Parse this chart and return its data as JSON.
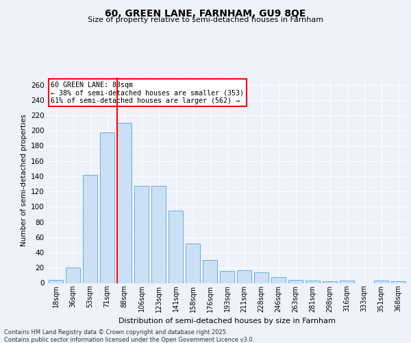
{
  "title": "60, GREEN LANE, FARNHAM, GU9 8QE",
  "subtitle": "Size of property relative to semi-detached houses in Farnham",
  "xlabel": "Distribution of semi-detached houses by size in Farnham",
  "ylabel": "Number of semi-detached properties",
  "categories": [
    "18sqm",
    "36sqm",
    "53sqm",
    "71sqm",
    "88sqm",
    "106sqm",
    "123sqm",
    "141sqm",
    "158sqm",
    "176sqm",
    "193sqm",
    "211sqm",
    "228sqm",
    "246sqm",
    "263sqm",
    "281sqm",
    "298sqm",
    "316sqm",
    "333sqm",
    "351sqm",
    "368sqm"
  ],
  "values": [
    4,
    20,
    142,
    198,
    210,
    127,
    127,
    95,
    52,
    30,
    16,
    17,
    14,
    8,
    4,
    3,
    2,
    3,
    0,
    3,
    2
  ],
  "bar_color": "#cce0f5",
  "bar_edge_color": "#6aaed6",
  "highlight_index": 4,
  "annotation_line1": "60 GREEN LANE: 88sqm",
  "annotation_line2": "← 38% of semi-detached houses are smaller (353)",
  "annotation_line3": "61% of semi-detached houses are larger (562) →",
  "ylim": [
    0,
    270
  ],
  "yticks": [
    0,
    20,
    40,
    60,
    80,
    100,
    120,
    140,
    160,
    180,
    200,
    220,
    240,
    260
  ],
  "background_color": "#eef2fa",
  "grid_color": "#ffffff",
  "footer_line1": "Contains HM Land Registry data © Crown copyright and database right 2025.",
  "footer_line2": "Contains public sector information licensed under the Open Government Licence v3.0."
}
